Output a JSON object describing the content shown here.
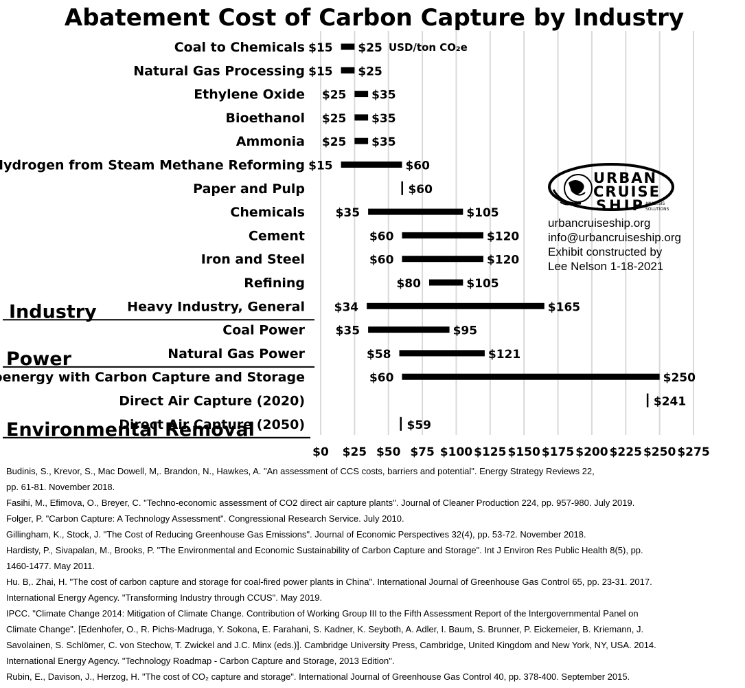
{
  "chart_data": {
    "type": "bar",
    "subtype": "floating-range-horizontal",
    "title": "Abatement Cost of Carbon Capture by Industry",
    "unit": "USD/ton CO₂e",
    "xlim": [
      0,
      275
    ],
    "x_ticks": [
      0,
      25,
      50,
      75,
      100,
      125,
      150,
      175,
      200,
      225,
      250,
      275
    ],
    "x_tick_labels": [
      "$0",
      "$25",
      "$50",
      "$75",
      "$100",
      "$125",
      "$150",
      "$175",
      "$200",
      "$225",
      "$250",
      "$275"
    ],
    "grid": "vertical",
    "categories": [
      {
        "name": "Coal to Chemicals",
        "low": 15,
        "high": 25,
        "low_label": "$15",
        "high_label": "$25"
      },
      {
        "name": "Natural Gas Processing",
        "low": 15,
        "high": 25,
        "low_label": "$15",
        "high_label": "$25"
      },
      {
        "name": "Ethylene Oxide",
        "low": 25,
        "high": 35,
        "low_label": "$25",
        "high_label": "$35"
      },
      {
        "name": "Bioethanol",
        "low": 25,
        "high": 35,
        "low_label": "$25",
        "high_label": "$35"
      },
      {
        "name": "Ammonia",
        "low": 25,
        "high": 35,
        "low_label": "$25",
        "high_label": "$35"
      },
      {
        "name": "Hydrogen from Steam Methane Reforming",
        "low": 15,
        "high": 60,
        "low_label": "$15",
        "high_label": "$60"
      },
      {
        "name": "Paper and Pulp",
        "low": 60,
        "high": 60,
        "low_label": "",
        "high_label": "$60"
      },
      {
        "name": "Chemicals",
        "low": 35,
        "high": 105,
        "low_label": "$35",
        "high_label": "$105"
      },
      {
        "name": "Cement",
        "low": 60,
        "high": 120,
        "low_label": "$60",
        "high_label": "$120"
      },
      {
        "name": "Iron and Steel",
        "low": 60,
        "high": 120,
        "low_label": "$60",
        "high_label": "$120"
      },
      {
        "name": "Refining",
        "low": 80,
        "high": 105,
        "low_label": "$80",
        "high_label": "$105"
      },
      {
        "name": "Heavy Industry, General",
        "low": 34,
        "high": 165,
        "low_label": "$34",
        "high_label": "$165"
      },
      {
        "name": "Coal Power",
        "low": 35,
        "high": 95,
        "low_label": "$35",
        "high_label": "$95"
      },
      {
        "name": "Natural Gas Power",
        "low": 58,
        "high": 121,
        "low_label": "$58",
        "high_label": "$121"
      },
      {
        "name": "Bioenergy with Carbon Capture and Storage",
        "low": 60,
        "high": 250,
        "low_label": "$60",
        "high_label": "$250"
      },
      {
        "name": "Direct Air Capture (2020)",
        "low": 241,
        "high": 241,
        "low_label": "",
        "high_label": "$241"
      },
      {
        "name": "Direct Air Capture (2050)",
        "low": 59,
        "high": 59,
        "low_label": "",
        "high_label": "$59"
      }
    ],
    "groups": [
      {
        "name": "Industry",
        "last_category": "Heavy Industry, General"
      },
      {
        "name": "Power",
        "last_category": "Natural Gas Power"
      },
      {
        "name": "Environmental Removal",
        "last_category": "Direct Air Capture (2050)"
      }
    ],
    "colors": {
      "bar": "#000000",
      "grid": "#d9d9d9"
    }
  },
  "brand": {
    "logo_words": [
      "URBAN",
      "CRUISE",
      "SHIP"
    ],
    "logo_sub": [
      "ANALYSIS",
      "SOLUTIONS"
    ],
    "logo_icon": "globe-swirl-icon",
    "info_lines": [
      "urbancruiseship.org",
      "info@urbancruiseship.org",
      "Exhibit constructed by",
      "Lee Nelson 1-18-2021"
    ]
  },
  "references": [
    "Budinis, S., Krevor, S., Mac Dowell, M,. Brandon, N., Hawkes, A. \"An assessment of CCS costs, barriers and potential\". Energy Strategy Reviews 22,",
    "pp. 61-81. November 2018.",
    "Fasihi, M., Efimova, O., Breyer, C. \"Techno-economic assessment of CO2 direct air capture plants\". Journal of Cleaner Production 224, pp. 957-980. July 2019.",
    "Folger, P. \"Carbon Capture: A Technology Assessment\". Congressional Research Service. July 2010.",
    "Gillingham, K., Stock, J. \"The Cost of Reducing Greenhouse Gas Emissions\". Journal of Economic Perspectives 32(4), pp. 53-72. November 2018.",
    "Hardisty, P., Sivapalan, M., Brooks, P. \"The Environmental and Economic Sustainability of Carbon Capture and Storage\". Int J Environ Res Public Health 8(5), pp.",
    "1460-1477. May 2011.",
    "Hu. B,. Zhai, H. \"The cost of carbon capture and storage for coal-fired power plants in China\". International Journal of Greenhouse Gas Control 65, pp. 23-31. 2017.",
    "International Energy Agency. \"Transforming Industry through CCUS\". May 2019.",
    "IPCC. \"Climate Change 2014: Mitigation of Climate Change. Contribution of Working Group III to the Fifth Assessment Report of the Intergovernmental Panel on",
    "Climate Change\". [Edenhofer, O., R. Pichs-Madruga, Y. Sokona, E. Farahani, S. Kadner, K. Seyboth, A. Adler, I. Baum, S. Brunner, P. Eickemeier, B. Kriemann, J.",
    "Savolainen, S. Schlömer, C. von Stechow, T. Zwickel and J.C. Minx (eds.)]. Cambridge University Press, Cambridge, United Kingdom and New York, NY, USA. 2014.",
    "International Energy Agency. \"Technology Roadmap - Carbon Capture and Storage, 2013 Edition\".",
    "Rubin, E., Davison, J., Herzog, H. \"The cost of CO₂ capture and storage\". International Journal of Greenhouse Gas Control 40, pp. 378-400. September 2015."
  ]
}
